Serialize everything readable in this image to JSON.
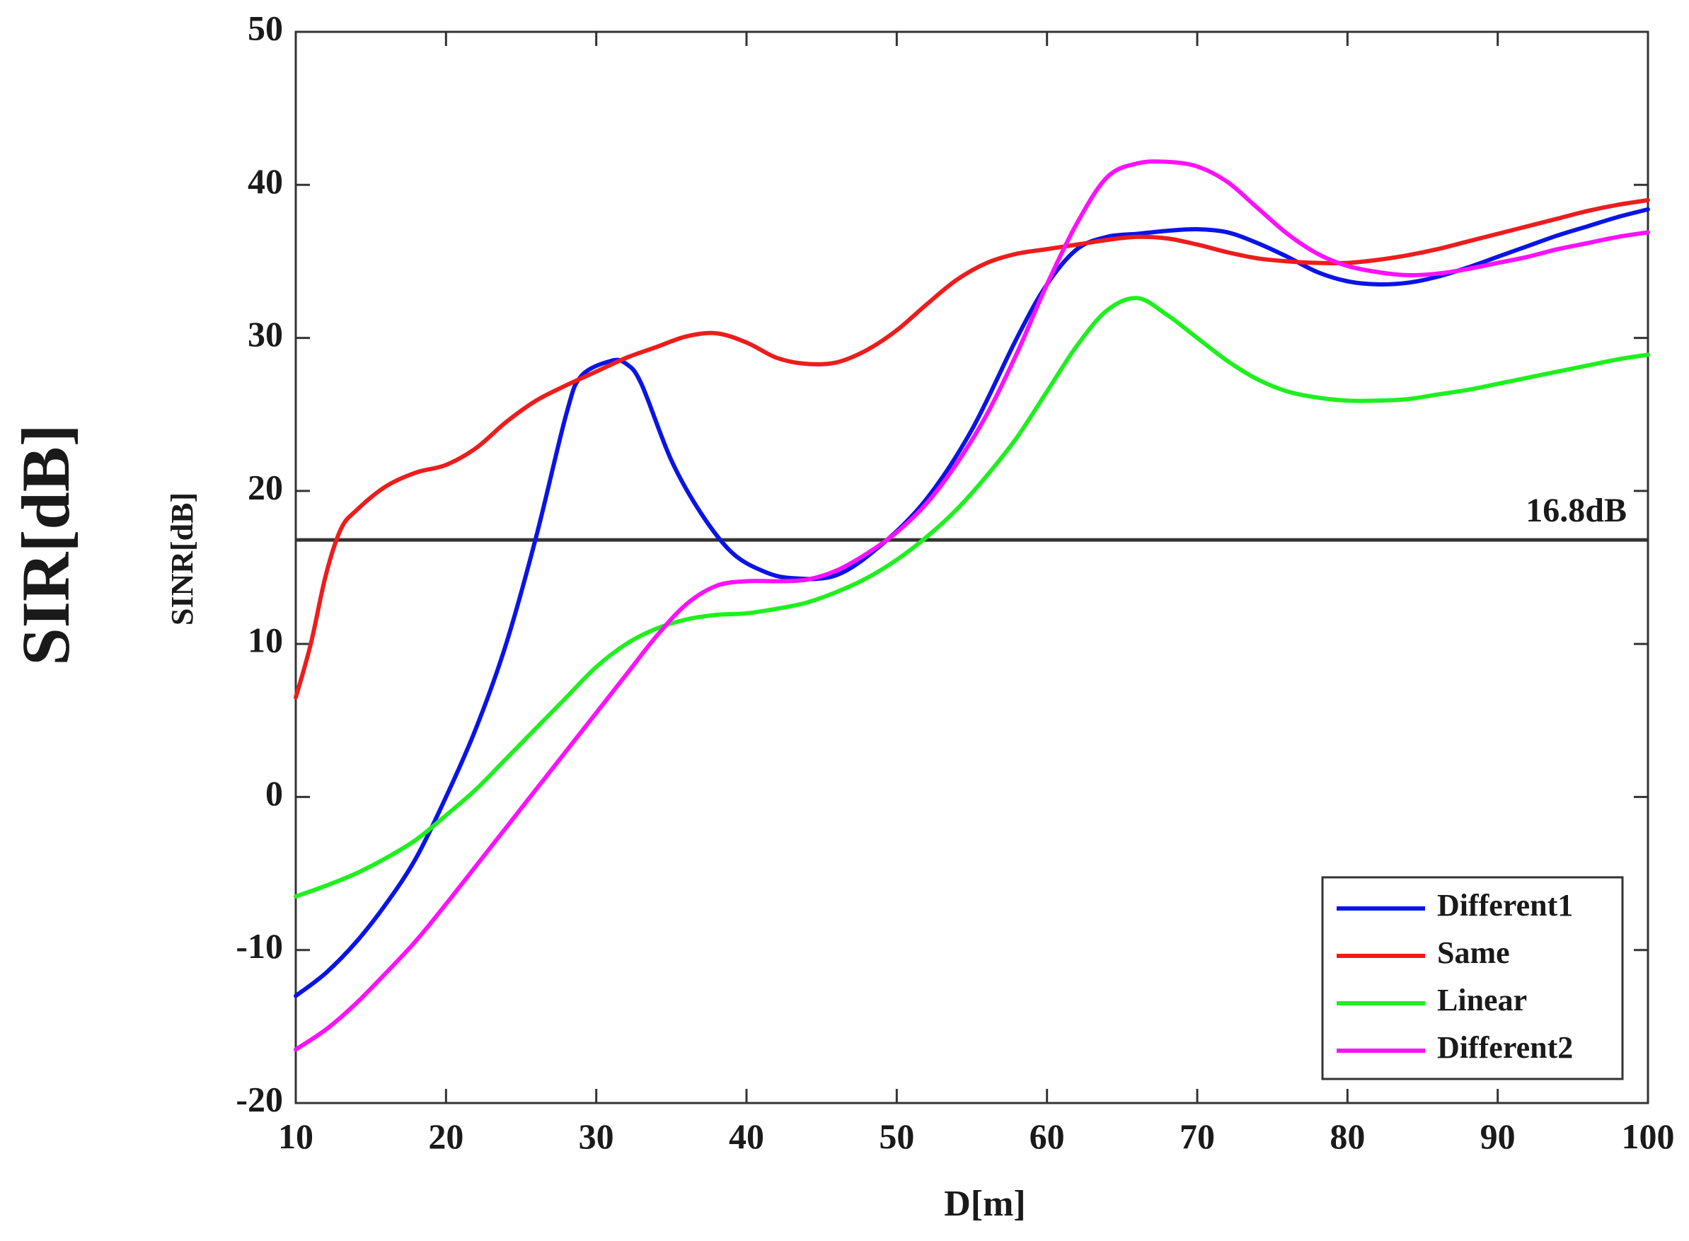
{
  "outer_label": "SIR[dB]",
  "chart_data": {
    "type": "line",
    "xlabel": "D[m]",
    "ylabel": "SINR[dB]",
    "xlim": [
      10,
      100
    ],
    "ylim": [
      -20,
      50
    ],
    "xticks": [
      "10",
      "20",
      "30",
      "40",
      "50",
      "60",
      "70",
      "80",
      "90",
      "100"
    ],
    "yticks": [
      "-20",
      "-10",
      "0",
      "10",
      "20",
      "30",
      "40",
      "50"
    ],
    "grid": false,
    "legend_position": "bottom-right",
    "reference_line": {
      "y": 16.8,
      "label": "16.8dB",
      "color": "#333333"
    },
    "series": [
      {
        "name": "Different1",
        "color": "#0a14e6",
        "points": [
          [
            10,
            -13
          ],
          [
            12,
            -11.5
          ],
          [
            14,
            -9.5
          ],
          [
            16,
            -7
          ],
          [
            18,
            -4
          ],
          [
            20,
            0
          ],
          [
            22,
            4.5
          ],
          [
            24,
            10
          ],
          [
            26,
            17
          ],
          [
            28,
            25
          ],
          [
            29,
            27.5
          ],
          [
            31,
            28.5
          ],
          [
            32,
            28.3
          ],
          [
            33,
            27
          ],
          [
            35,
            22
          ],
          [
            37,
            18.5
          ],
          [
            39,
            16
          ],
          [
            41,
            14.8
          ],
          [
            43,
            14.3
          ],
          [
            46,
            14.5
          ],
          [
            49,
            16.5
          ],
          [
            52,
            19.5
          ],
          [
            55,
            24
          ],
          [
            58,
            30
          ],
          [
            60,
            33.5
          ],
          [
            62,
            35.8
          ],
          [
            64,
            36.6
          ],
          [
            66,
            36.8
          ],
          [
            68,
            37
          ],
          [
            70,
            37.1
          ],
          [
            72,
            36.9
          ],
          [
            74,
            36.2
          ],
          [
            76,
            35.3
          ],
          [
            78,
            34.3
          ],
          [
            80,
            33.7
          ],
          [
            82,
            33.5
          ],
          [
            84,
            33.6
          ],
          [
            86,
            34
          ],
          [
            88,
            34.6
          ],
          [
            90,
            35.3
          ],
          [
            92,
            36
          ],
          [
            94,
            36.7
          ],
          [
            96,
            37.3
          ],
          [
            98,
            37.9
          ],
          [
            100,
            38.4
          ]
        ]
      },
      {
        "name": "Same",
        "color": "#ee1c1c",
        "points": [
          [
            10,
            6.5
          ],
          [
            11,
            10
          ],
          [
            12,
            14.5
          ],
          [
            13,
            17.5
          ],
          [
            14,
            18.7
          ],
          [
            16,
            20.3
          ],
          [
            18,
            21.2
          ],
          [
            20,
            21.7
          ],
          [
            22,
            22.8
          ],
          [
            24,
            24.5
          ],
          [
            26,
            25.9
          ],
          [
            28,
            26.9
          ],
          [
            30,
            27.8
          ],
          [
            32,
            28.7
          ],
          [
            34,
            29.4
          ],
          [
            36,
            30.1
          ],
          [
            38,
            30.3
          ],
          [
            40,
            29.7
          ],
          [
            42,
            28.7
          ],
          [
            44,
            28.3
          ],
          [
            46,
            28.4
          ],
          [
            48,
            29.2
          ],
          [
            50,
            30.5
          ],
          [
            52,
            32.2
          ],
          [
            54,
            33.8
          ],
          [
            56,
            34.9
          ],
          [
            58,
            35.5
          ],
          [
            60,
            35.8
          ],
          [
            62,
            36.1
          ],
          [
            64,
            36.4
          ],
          [
            66,
            36.6
          ],
          [
            68,
            36.5
          ],
          [
            70,
            36.1
          ],
          [
            72,
            35.6
          ],
          [
            74,
            35.2
          ],
          [
            76,
            35
          ],
          [
            78,
            34.9
          ],
          [
            80,
            34.9
          ],
          [
            82,
            35.1
          ],
          [
            84,
            35.4
          ],
          [
            86,
            35.8
          ],
          [
            88,
            36.3
          ],
          [
            90,
            36.8
          ],
          [
            92,
            37.3
          ],
          [
            94,
            37.8
          ],
          [
            96,
            38.3
          ],
          [
            98,
            38.7
          ],
          [
            100,
            39
          ]
        ]
      },
      {
        "name": "Linear",
        "color": "#1ef01e",
        "points": [
          [
            10,
            -6.5
          ],
          [
            12,
            -5.8
          ],
          [
            14,
            -5
          ],
          [
            16,
            -4
          ],
          [
            18,
            -2.8
          ],
          [
            20,
            -1.2
          ],
          [
            22,
            0.5
          ],
          [
            24,
            2.5
          ],
          [
            26,
            4.5
          ],
          [
            28,
            6.5
          ],
          [
            30,
            8.5
          ],
          [
            32,
            10
          ],
          [
            34,
            11
          ],
          [
            36,
            11.6
          ],
          [
            38,
            11.9
          ],
          [
            40,
            12
          ],
          [
            42,
            12.3
          ],
          [
            44,
            12.7
          ],
          [
            46,
            13.4
          ],
          [
            48,
            14.3
          ],
          [
            50,
            15.5
          ],
          [
            52,
            17
          ],
          [
            54,
            18.8
          ],
          [
            56,
            21
          ],
          [
            58,
            23.5
          ],
          [
            60,
            26.5
          ],
          [
            62,
            29.5
          ],
          [
            64,
            31.8
          ],
          [
            66,
            32.6
          ],
          [
            68,
            31.5
          ],
          [
            70,
            30
          ],
          [
            72,
            28.5
          ],
          [
            74,
            27.3
          ],
          [
            76,
            26.5
          ],
          [
            78,
            26.1
          ],
          [
            80,
            25.9
          ],
          [
            82,
            25.9
          ],
          [
            84,
            26
          ],
          [
            86,
            26.3
          ],
          [
            88,
            26.6
          ],
          [
            90,
            27
          ],
          [
            92,
            27.4
          ],
          [
            94,
            27.8
          ],
          [
            96,
            28.2
          ],
          [
            98,
            28.6
          ],
          [
            100,
            28.9
          ]
        ]
      },
      {
        "name": "Different2",
        "color": "#ff10ff",
        "points": [
          [
            10,
            -16.5
          ],
          [
            12,
            -15.2
          ],
          [
            14,
            -13.5
          ],
          [
            16,
            -11.5
          ],
          [
            18,
            -9.4
          ],
          [
            20,
            -7
          ],
          [
            22,
            -4.5
          ],
          [
            24,
            -2
          ],
          [
            26,
            0.5
          ],
          [
            28,
            3
          ],
          [
            30,
            5.5
          ],
          [
            32,
            8
          ],
          [
            34,
            10.5
          ],
          [
            36,
            12.6
          ],
          [
            38,
            13.8
          ],
          [
            40,
            14.1
          ],
          [
            42,
            14.1
          ],
          [
            44,
            14.2
          ],
          [
            46,
            14.8
          ],
          [
            48,
            15.9
          ],
          [
            50,
            17.3
          ],
          [
            52,
            19.2
          ],
          [
            54,
            21.8
          ],
          [
            56,
            25
          ],
          [
            58,
            29
          ],
          [
            60,
            33.5
          ],
          [
            62,
            37.5
          ],
          [
            64,
            40.5
          ],
          [
            66,
            41.4
          ],
          [
            68,
            41.5
          ],
          [
            70,
            41.2
          ],
          [
            72,
            40.2
          ],
          [
            74,
            38.5
          ],
          [
            76,
            36.8
          ],
          [
            78,
            35.5
          ],
          [
            80,
            34.7
          ],
          [
            82,
            34.3
          ],
          [
            84,
            34.1
          ],
          [
            86,
            34.2
          ],
          [
            88,
            34.5
          ],
          [
            90,
            34.9
          ],
          [
            92,
            35.3
          ],
          [
            94,
            35.8
          ],
          [
            96,
            36.2
          ],
          [
            98,
            36.6
          ],
          [
            100,
            36.9
          ]
        ]
      }
    ]
  }
}
